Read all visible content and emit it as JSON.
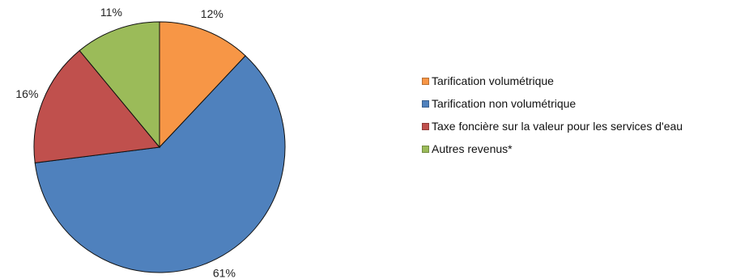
{
  "chart_data": {
    "type": "pie",
    "start": "12 o'clock, clockwise",
    "slices": [
      {
        "label": "Tarification volumétrique",
        "value": 12,
        "value_label": "12%",
        "color": "#F79646"
      },
      {
        "label": "Tarification non volumétrique",
        "value": 61,
        "value_label": "61%",
        "color": "#4F81BD"
      },
      {
        "label": "Taxe foncière sur la valeur pour les services d'eau",
        "value": 16,
        "value_label": "16%",
        "color": "#C0504D"
      },
      {
        "label": "Autres revenus*",
        "value": 11,
        "value_label": "11%",
        "color": "#9BBB59"
      }
    ],
    "legend_position": "right"
  }
}
